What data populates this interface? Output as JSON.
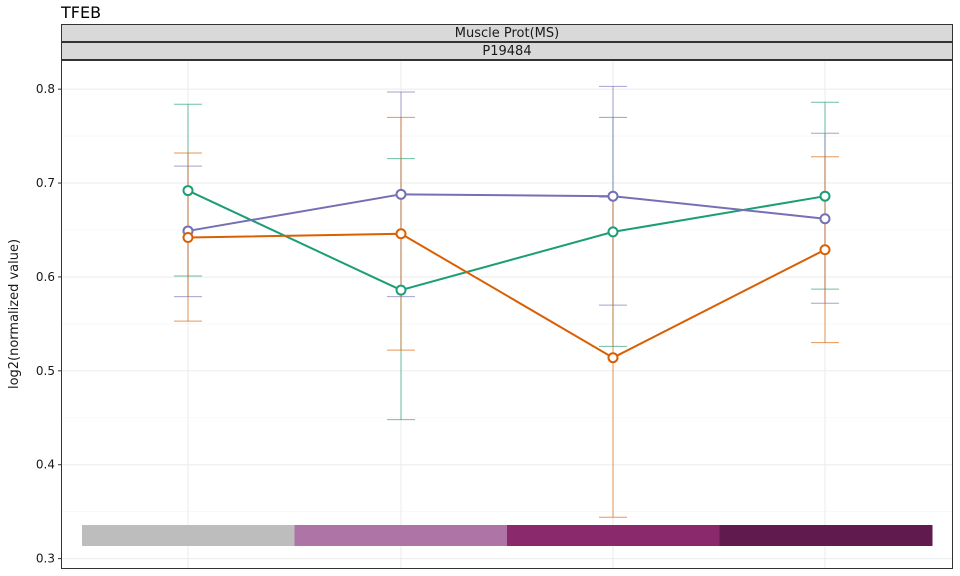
{
  "title": "TFEB",
  "chart_data": {
    "type": "line",
    "facet_strips": [
      "Muscle Prot(MS)",
      "P19484"
    ],
    "xlabel": "",
    "ylabel": "log2(normalized value)",
    "ylim": [
      0.29,
      0.83
    ],
    "yticks": [
      0.3,
      0.4,
      0.5,
      0.6,
      0.7,
      0.8
    ],
    "ytick_labels": [
      "0.3",
      "0.4",
      "0.5",
      "0.6",
      "0.7",
      "0.8"
    ],
    "x": [
      1,
      2,
      3,
      4
    ],
    "grid": true,
    "series": [
      {
        "color": "#1b9e77",
        "values": [
          0.692,
          0.586,
          0.648,
          0.686
        ],
        "err_low": [
          0.601,
          0.448,
          0.526,
          0.587
        ],
        "err_high": [
          0.784,
          0.726,
          0.77,
          0.786
        ]
      },
      {
        "color": "#7570b3",
        "values": [
          0.649,
          0.688,
          0.686,
          0.662
        ],
        "err_low": [
          0.579,
          0.579,
          0.57,
          0.572
        ],
        "err_high": [
          0.718,
          0.797,
          0.803,
          0.753
        ]
      },
      {
        "color": "#d95f02",
        "values": [
          0.642,
          0.646,
          0.514,
          0.629
        ],
        "err_low": [
          0.553,
          0.522,
          0.344,
          0.53
        ],
        "err_high": [
          0.732,
          0.77,
          0.685,
          0.728
        ]
      }
    ],
    "color_bar": [
      "#bdbdbd",
      "#ae74a5",
      "#8a2a6d",
      "#611a4d"
    ]
  }
}
